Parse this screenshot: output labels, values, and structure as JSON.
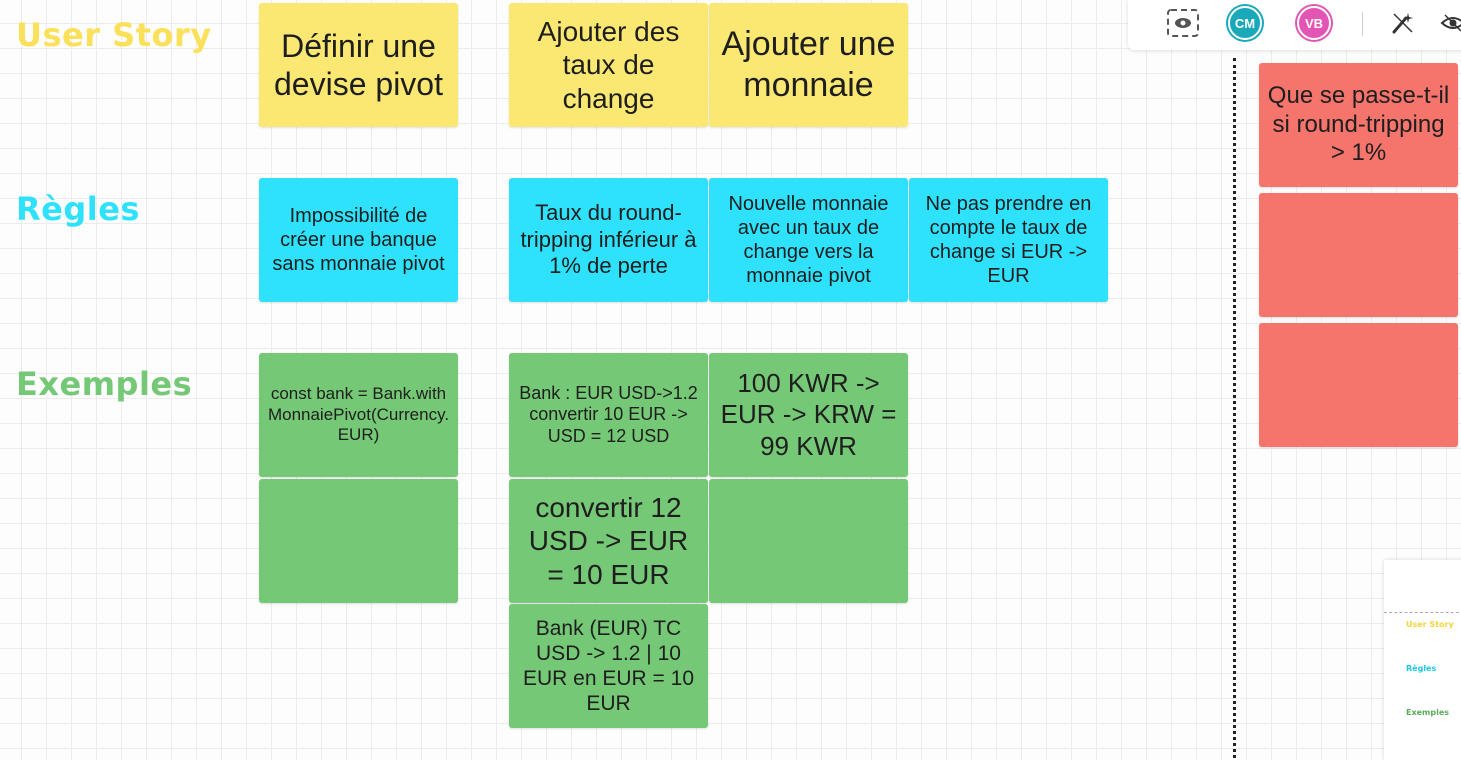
{
  "rows": {
    "user_story": {
      "label": "User Story",
      "color": "#fbe873"
    },
    "regles": {
      "label": "Règles",
      "color": "#2ee1fd"
    },
    "exemples": {
      "label": "Exemples",
      "color": "#75c876"
    }
  },
  "stickies": {
    "us1": "Définir une devise pivot",
    "us2": "Ajouter des taux de change",
    "us3": "Ajouter une monnaie",
    "r1": "Impossibilité de créer une banque sans monnaie pivot",
    "r2": "Taux du round-tripping inférieur à 1% de perte",
    "r3": "Nouvelle monnaie avec un taux de change vers la monnaie pivot",
    "r4": "Ne pas prendre en compte le taux de change si EUR -> EUR",
    "e1": "const bank = Bank.withMonnaiePivot(Currency.EUR)",
    "e2": "Bank : EUR USD->1.2 convertir 10 EUR -> USD = 12 USD",
    "e3": "100 KWR -> EUR -> KRW = 99 KWR",
    "e4": "",
    "e5": "convertir 12 USD -> EUR = 10 EUR",
    "e6": "",
    "e7": "Bank (EUR) TC USD -> 1.2 | 10 EUR en EUR = 10 EUR",
    "q1": "Que se passe-t-il si round-tripping > 1%",
    "q2": "",
    "q3": ""
  },
  "toolbar": {
    "icons": [
      "screen-record-icon",
      "magic-wand-icon",
      "eye-icon"
    ],
    "avatars": [
      {
        "initials": "CM",
        "color": "#19a9b8"
      },
      {
        "initials": "VB",
        "color": "#e355b4"
      }
    ]
  },
  "minimap": {
    "labels": [
      "User Story",
      "Règles",
      "Exemples"
    ]
  }
}
